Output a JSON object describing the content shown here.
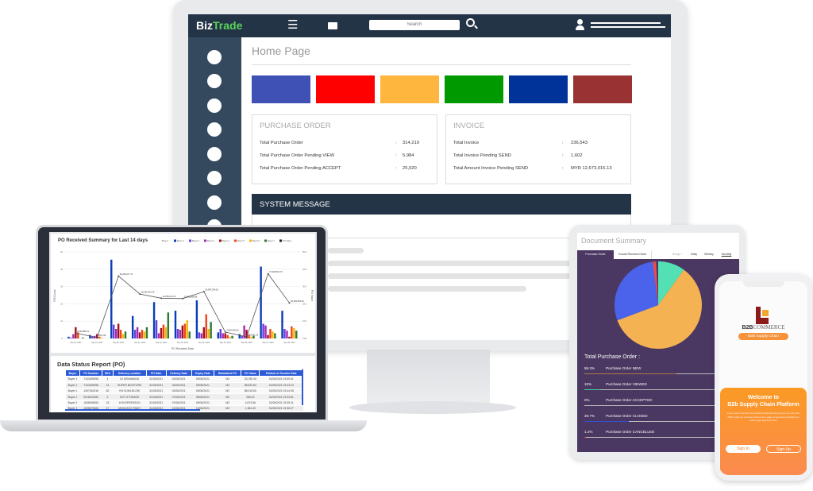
{
  "desktop": {
    "brand_prefix": "Biz",
    "brand_suffix": "Trade",
    "search_placeholder": "Search",
    "page_title": "Home Page",
    "tiles": [
      "#3f51b5",
      "#ff0000",
      "#ffb63f",
      "#009a00",
      "#003399",
      "#993333"
    ],
    "purchase_order": {
      "title": "PURCHASE ORDER",
      "rows": [
        {
          "label": "Total Purchase Order",
          "value": "314,219"
        },
        {
          "label": "Total Purchase Order Pending VIEW",
          "value": "5,984"
        },
        {
          "label": "Total Purchase Order Pending ACCEPT",
          "value": "25,020"
        }
      ]
    },
    "invoice": {
      "title": "INVOICE",
      "rows": [
        {
          "label": "Total Invoice",
          "value": "236,543"
        },
        {
          "label": "Total Invoice Pending SEND",
          "value": "1,602"
        },
        {
          "label": "Total Amount Invoice Pending SEND",
          "value": "MYR 12,673,015.13"
        }
      ]
    },
    "separator": ":",
    "system_message": "SYSTEM MESSAGE"
  },
  "laptop": {
    "table_title": "Data Status Report (PO)",
    "columns": [
      "Buyer",
      "PO Number",
      "SKU",
      "Delivery Location",
      "PO Date",
      "Delivery Date",
      "Expiry Date",
      "Backdated PO",
      "PO Value",
      "Publish or Receive Date"
    ],
    "rows": [
      [
        "Buyer 1",
        "7103409098",
        "4",
        "04 SENAWANG",
        "31/05/2021",
        "04/06/2021",
        "05/06/2021",
        "NO",
        "33,780.40",
        "31/05/2021 23:59:41"
      ],
      [
        "Buyer 1",
        "7103409096",
        "14",
        "SUPER BIGSTORE",
        "31/05/2021",
        "04/06/2021",
        "05/06/2021",
        "NO",
        "58,533.84",
        "31/05/2021 23:43:24"
      ],
      [
        "Buyer 1",
        "1307061916",
        "82",
        "KN SUKA BLOW",
        "31/05/2021",
        "02/06/2021",
        "05/06/2021",
        "NO",
        "88,015.60",
        "31/05/2021 23:44:28"
      ],
      [
        "Buyer 2",
        "9016023059",
        "2",
        "HOT STORAGE",
        "31/05/2021",
        "07/06/2021",
        "08/06/2021",
        "NO",
        "266.40",
        "31/05/2021 23:33:51"
      ],
      [
        "Buyer 2",
        "1006094053",
        "23",
        "H EKSPRESSOO",
        "31/05/2021",
        "07/06/2021",
        "09/06/2021",
        "NO",
        "3,673.56",
        "31/05/2021 23:39:11"
      ],
      [
        "Buyer 1",
        "1205079606",
        "17",
        "MOKCATO FINDY",
        "31/05/2021",
        "12/06/2021",
        "13/06/2021",
        "NO",
        "1,384.40",
        "31/05/2021 23:36:27"
      ]
    ]
  },
  "chart_data": {
    "type": "bar",
    "title": "PO Received Summary for Last 14 days",
    "legend_title": "Buyer :",
    "legend_placement": "top-right",
    "xlabel": "PO Received Date",
    "ylabel": "PO Count",
    "y2label": "PO Value",
    "ylim": [
      0,
      5000
    ],
    "y2lim": [
      0,
      50000000
    ],
    "yticks": [
      "0",
      "1k",
      "2k",
      "3k",
      "4k",
      "5k"
    ],
    "y2ticks": [
      "0.00",
      "10.0",
      "20.0",
      "30.0",
      "40.0",
      "50.0"
    ],
    "grid": true,
    "categories": [
      "Sep 18, 2021",
      "Sep 19, 2021",
      "Sep 20, 2021",
      "Sep 21, 2021",
      "Sep 22, 2021",
      "Sep 23, 2021",
      "Sep 24, 2021",
      "Sep 25, 2021",
      "Sep 26, 2021",
      "Sep 27, 2021",
      "Sep 28, 2021"
    ],
    "series": [
      {
        "name": "Buyer 1",
        "color": "#0b3fb5",
        "values": [
          100,
          200,
          4550,
          1300,
          2100,
          1600,
          2200,
          350,
          250,
          4150,
          1600
        ]
      },
      {
        "name": "Buyer 2",
        "color": "#6a3ee0",
        "values": [
          50,
          100,
          800,
          500,
          1050,
          550,
          350,
          550,
          150,
          850,
          550
        ]
      },
      {
        "name": "Buyer 3",
        "color": "#a42ab0",
        "values": [
          250,
          150,
          550,
          650,
          300,
          500,
          300,
          300,
          750,
          750,
          450
        ]
      },
      {
        "name": "Buyer 4",
        "color": "#a0101c",
        "values": [
          650,
          250,
          850,
          350,
          600,
          750,
          650,
          300,
          500,
          200,
          100
        ]
      },
      {
        "name": "Buyer 5",
        "color": "#f0441c",
        "values": [
          350,
          100,
          500,
          500,
          800,
          850,
          1400,
          200,
          200,
          550,
          700
        ]
      },
      {
        "name": "Buyer 6",
        "color": "#f6b800",
        "values": [
          0,
          50,
          250,
          400,
          650,
          1050,
          550,
          100,
          100,
          400,
          600
        ]
      },
      {
        "name": "Buyer 7",
        "color": "#2f7a33",
        "values": [
          50,
          0,
          400,
          650,
          1500,
          400,
          950,
          150,
          150,
          300,
          450
        ]
      }
    ],
    "line": {
      "name": "PO Value",
      "color": "#555555",
      "values": [
        3030886.41,
        595708,
        36030677.27,
        25635333.4,
        23258213.41,
        23032858.58,
        26997294.62,
        3653625.05,
        979501.0,
        37328994.7,
        20494652.4
      ],
      "labels": [
        "3,030,886.41",
        "595,708",
        "36,030,677.27",
        "25,635,333.40",
        "23,258,213.41",
        "23,032,858.58",
        "26,997,294.62",
        "3,653,625.05",
        "979,501.00",
        "37,328,994.70",
        "20,494,652.40"
      ]
    }
  },
  "tablet": {
    "title": "Document Summary",
    "tabs": [
      "Purchase Order",
      "Goods Received Note"
    ],
    "range_label": "Range :",
    "ranges": [
      "Daily",
      "Weekly",
      "Monthly"
    ],
    "total_label": "Total Purchase Order :",
    "items": [
      {
        "pct": "59.3%",
        "value": 59.3,
        "label": "Purchase Order NEW",
        "color": "#a87a4a",
        "pie": "#f5b252"
      },
      {
        "pct": "10%",
        "value": 10,
        "label": "Purchase Order VIEWED",
        "color": "#3fcf9f",
        "pie": "#52e0b4"
      },
      {
        "pct": "0%",
        "value": 0,
        "label": "Purchase Order ACCEPTED",
        "color": "#999999",
        "pie": "#999999"
      },
      {
        "pct": "28.7%",
        "value": 28.7,
        "label": "Purchase Order CLOSED",
        "color": "#3550d0",
        "pie": "#4a63ea"
      },
      {
        "pct": "1.2%",
        "value": 1.2,
        "label": "Purchase Order CANCELLED",
        "color": "#e84444",
        "pie": "#ee4b4b"
      }
    ]
  },
  "phone": {
    "logo_bold": "B2B",
    "logo_rest": "COMMERCE",
    "pill": "- B2B Supply Chain -",
    "welcome_line1": "Welcome to",
    "welcome_line2": "B2b Supply Chain Platform",
    "body": "Lorem Ipsum has been the industry's standard dummy text ever since the 1500s, when an unknown printer took a galley of type and scrambled it to make a type specimen book.",
    "sign_in": "Sign In",
    "sign_up": "Sign Up"
  }
}
